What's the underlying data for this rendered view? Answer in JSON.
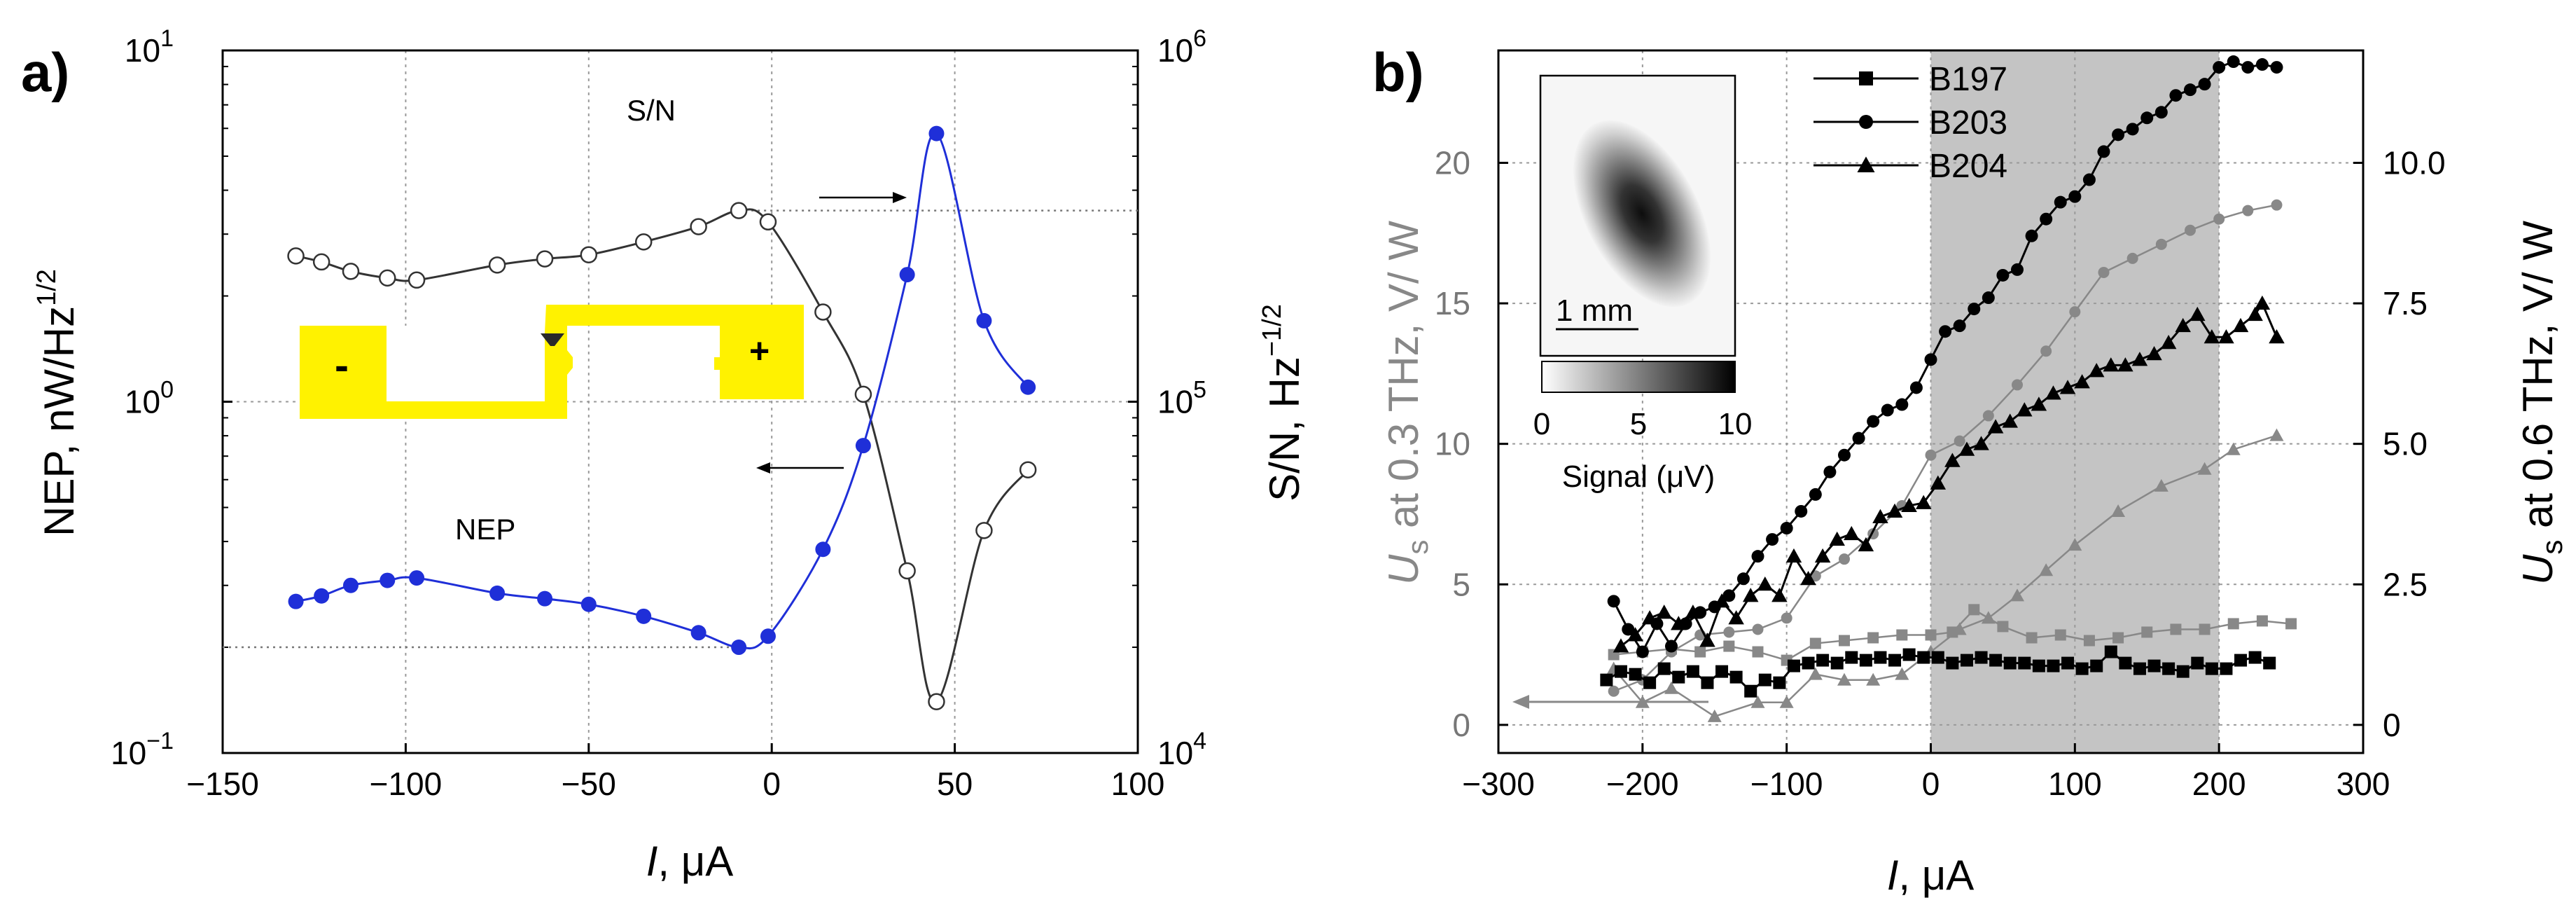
{
  "chart_data": [
    {
      "panel_label": "a)",
      "type": "line",
      "x_tick_labels": [
        "−150",
        "−100",
        "−50",
        "0",
        "50",
        "100"
      ],
      "xlim": [
        -150,
        100
      ],
      "xlabel_italic": "I",
      "xlabel_rest": ", μA",
      "y_left_scale": "log",
      "y_left_lim": [
        0.1,
        10
      ],
      "y_left_label": "NEP, nW/Hz",
      "y_left_label_sup": "1/2",
      "y_left_ticks": [
        {
          "value": 0.1,
          "base": "10",
          "exp": "−1"
        },
        {
          "value": 1,
          "base": "10",
          "exp": "0"
        },
        {
          "value": 10,
          "base": "10",
          "exp": "1"
        }
      ],
      "y_right_scale": "log",
      "y_right_lim": [
        10000,
        1000000
      ],
      "y_right_label": "S/N, Hz",
      "y_right_label_sup": "−1/2",
      "y_right_ticks": [
        {
          "value": 10000,
          "base": "10",
          "exp": "4"
        },
        {
          "value": 100000,
          "base": "10",
          "exp": "5"
        },
        {
          "value": 1000000,
          "base": "10",
          "exp": "6"
        }
      ],
      "grid": true,
      "annotations": [
        "S/N",
        "NEP"
      ],
      "inset_labels": [
        "-",
        "+"
      ],
      "series": [
        {
          "name": "S/N",
          "axis": "right",
          "color": "#333333",
          "marker": "open-circle",
          "x": [
            -130,
            -123,
            -115,
            -105,
            -97,
            -75,
            -62,
            -50,
            -35,
            -20,
            -9,
            -1,
            14,
            25,
            37,
            45,
            58,
            70
          ],
          "y": [
            260000,
            250000,
            235000,
            225000,
            222000,
            245000,
            255000,
            262000,
            285000,
            315000,
            350000,
            325000,
            180000,
            105000,
            33000,
            14000,
            43000,
            64000
          ]
        },
        {
          "name": "NEP",
          "axis": "left",
          "color": "#1f2fd8",
          "marker": "filled-circle",
          "x": [
            -130,
            -123,
            -115,
            -105,
            -97,
            -75,
            -62,
            -50,
            -35,
            -20,
            -9,
            -1,
            14,
            25,
            37,
            45,
            58,
            70
          ],
          "y": [
            0.27,
            0.28,
            0.3,
            0.31,
            0.315,
            0.285,
            0.275,
            0.265,
            0.245,
            0.22,
            0.2,
            0.215,
            0.38,
            0.75,
            2.3,
            5.8,
            1.7,
            1.1
          ]
        }
      ],
      "reference_lines": [
        {
          "axis": "left",
          "value": 0.2,
          "from_x": -150,
          "to_x": -9
        },
        {
          "axis": "right",
          "value": 350000,
          "from_x": -9,
          "to_x": 100
        }
      ]
    },
    {
      "panel_label": "b)",
      "type": "line",
      "x_tick_labels": [
        "−300",
        "−200",
        "−100",
        "0",
        "100",
        "200",
        "300"
      ],
      "xlim": [
        -300,
        300
      ],
      "xlabel_italic": "I",
      "xlabel_rest": ", μA",
      "y_left_lim": [
        -1,
        24
      ],
      "y_left_ticks": [
        "0",
        "5",
        "10",
        "15",
        "20"
      ],
      "y_left_label_italic": "U",
      "y_left_label_sub": "s",
      "y_left_label_rest": "  at 0.3 THz, V/ W",
      "y_right_lim": [
        -0.5,
        12
      ],
      "y_right_ticks": [
        "0",
        "2.5",
        "5.0",
        "7.5",
        "10.0"
      ],
      "y_right_label_italic": "U",
      "y_right_label_sub": "s",
      "y_right_label_rest": " at 0.6 THz, V/ W",
      "shaded_region": [
        0,
        200
      ],
      "grid": true,
      "legend": [
        {
          "name": "B197",
          "marker": "filled-square"
        },
        {
          "name": "B203",
          "marker": "filled-circle"
        },
        {
          "name": "B204",
          "marker": "filled-triangle"
        }
      ],
      "inset": {
        "scale_text": "1 mm",
        "colorbar_ticks": [
          "0",
          "5",
          "10"
        ],
        "colorbar_label": "Signal (μV)"
      },
      "series": [
        {
          "name": "B197",
          "axis": "right",
          "color": "#000000",
          "marker": "filled-square",
          "x": [
            -225,
            -215,
            -205,
            -195,
            -185,
            -175,
            -165,
            -155,
            -145,
            -135,
            -125,
            -115,
            -105,
            -95,
            -85,
            -75,
            -65,
            -55,
            -45,
            -35,
            -25,
            -15,
            -5,
            5,
            15,
            25,
            35,
            45,
            55,
            65,
            75,
            85,
            95,
            105,
            115,
            125,
            135,
            145,
            155,
            165,
            175,
            185,
            195,
            205,
            215,
            225,
            235
          ],
          "y": [
            0.8,
            0.95,
            0.9,
            0.75,
            1.0,
            0.85,
            0.95,
            0.75,
            0.95,
            0.85,
            0.6,
            0.8,
            0.75,
            1.05,
            1.1,
            1.15,
            1.1,
            1.2,
            1.15,
            1.2,
            1.15,
            1.25,
            1.2,
            1.2,
            1.1,
            1.15,
            1.2,
            1.15,
            1.1,
            1.1,
            1.05,
            1.05,
            1.1,
            1.0,
            1.05,
            1.3,
            1.1,
            1.0,
            1.05,
            1.0,
            0.95,
            1.1,
            1.0,
            1.0,
            1.15,
            1.2,
            1.1
          ]
        },
        {
          "name": "B203",
          "axis": "right",
          "color": "#000000",
          "marker": "filled-circle",
          "x": [
            -220,
            -210,
            -200,
            -190,
            -180,
            -170,
            -160,
            -150,
            -140,
            -130,
            -120,
            -110,
            -100,
            -90,
            -80,
            -70,
            -60,
            -50,
            -40,
            -30,
            -20,
            -10,
            0,
            10,
            20,
            30,
            40,
            50,
            60,
            70,
            80,
            90,
            100,
            110,
            120,
            130,
            140,
            150,
            160,
            170,
            180,
            190,
            200,
            210,
            220,
            230,
            240
          ],
          "y": [
            2.2,
            1.7,
            1.3,
            1.8,
            1.4,
            1.8,
            2.0,
            2.1,
            2.3,
            2.6,
            3.0,
            3.3,
            3.5,
            3.8,
            4.1,
            4.5,
            4.8,
            5.1,
            5.4,
            5.6,
            5.7,
            6.0,
            6.5,
            7.0,
            7.1,
            7.4,
            7.6,
            8.0,
            8.1,
            8.7,
            9.0,
            9.3,
            9.4,
            9.7,
            10.2,
            10.5,
            10.6,
            10.8,
            10.9,
            11.2,
            11.3,
            11.4,
            11.7,
            11.8,
            11.7,
            11.75,
            11.7
          ]
        },
        {
          "name": "B204",
          "axis": "right",
          "color": "#000000",
          "marker": "filled-triangle",
          "x": [
            -215,
            -205,
            -195,
            -185,
            -175,
            -165,
            -155,
            -145,
            -135,
            -125,
            -115,
            -105,
            -95,
            -85,
            -75,
            -65,
            -55,
            -45,
            -35,
            -25,
            -15,
            -5,
            5,
            15,
            25,
            35,
            45,
            55,
            65,
            75,
            85,
            95,
            105,
            115,
            125,
            135,
            145,
            155,
            165,
            175,
            185,
            195,
            205,
            215,
            225,
            230,
            240
          ],
          "y": [
            1.4,
            1.6,
            1.9,
            2.0,
            1.8,
            2.0,
            1.5,
            2.2,
            1.9,
            2.3,
            2.5,
            2.3,
            3.0,
            2.6,
            3.0,
            3.3,
            3.4,
            3.2,
            3.7,
            3.8,
            3.9,
            3.95,
            4.3,
            4.7,
            4.9,
            5.0,
            5.3,
            5.4,
            5.6,
            5.7,
            5.9,
            6.0,
            6.1,
            6.3,
            6.4,
            6.4,
            6.5,
            6.6,
            6.8,
            7.1,
            7.3,
            6.9,
            6.9,
            7.1,
            7.3,
            7.5,
            6.9
          ]
        },
        {
          "name": "B197 (0.3 THz)",
          "axis": "left",
          "color": "#888888",
          "marker": "filled-square",
          "x": [
            -220,
            -200,
            -180,
            -160,
            -140,
            -120,
            -100,
            -80,
            -60,
            -40,
            -20,
            0,
            15,
            30,
            50,
            70,
            90,
            110,
            130,
            150,
            170,
            190,
            210,
            230,
            250
          ],
          "y": [
            2.5,
            2.6,
            2.7,
            2.6,
            2.8,
            2.6,
            2.3,
            2.9,
            3.0,
            3.1,
            3.2,
            3.2,
            3.3,
            4.1,
            3.5,
            3.1,
            3.2,
            3.0,
            3.1,
            3.3,
            3.4,
            3.4,
            3.6,
            3.7,
            3.6
          ]
        },
        {
          "name": "B203 (0.3 THz)",
          "axis": "left",
          "color": "#888888",
          "marker": "filled-circle",
          "x": [
            -220,
            -200,
            -180,
            -160,
            -140,
            -120,
            -100,
            -80,
            -60,
            -40,
            -20,
            0,
            20,
            40,
            60,
            80,
            100,
            120,
            140,
            160,
            180,
            200,
            220,
            240
          ],
          "y": [
            1.2,
            1.6,
            2.6,
            3.2,
            3.3,
            3.4,
            3.8,
            5.3,
            5.9,
            6.8,
            7.8,
            9.6,
            10.1,
            11.0,
            12.1,
            13.3,
            14.7,
            16.1,
            16.6,
            17.1,
            17.6,
            18.0,
            18.3,
            18.5
          ]
        },
        {
          "name": "B204 (0.3 THz)",
          "axis": "left",
          "color": "#888888",
          "marker": "filled-triangle",
          "x": [
            -220,
            -200,
            -180,
            -150,
            -120,
            -100,
            -80,
            -60,
            -40,
            -20,
            0,
            20,
            40,
            60,
            80,
            100,
            130,
            160,
            190,
            210,
            240
          ],
          "y": [
            2.0,
            0.8,
            1.3,
            0.3,
            0.8,
            0.8,
            1.8,
            1.6,
            1.6,
            1.8,
            2.6,
            3.4,
            3.8,
            4.6,
            5.5,
            6.4,
            7.6,
            8.5,
            9.1,
            9.8,
            10.3
          ]
        }
      ]
    }
  ]
}
